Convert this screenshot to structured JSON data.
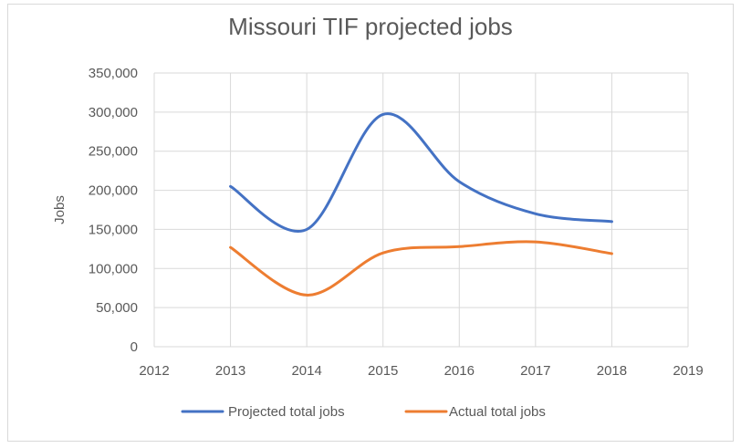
{
  "chart_data": {
    "type": "line",
    "title": "Missouri TIF projected jobs",
    "xlabel": "",
    "ylabel": "Jobs",
    "x": [
      2013,
      2014,
      2015,
      2016,
      2017,
      2018
    ],
    "x_ticks": [
      "2012",
      "2013",
      "2014",
      "2015",
      "2016",
      "2017",
      "2018",
      "2019"
    ],
    "xlim": [
      2012,
      2019
    ],
    "y_ticks": [
      "0",
      "50,000",
      "100,000",
      "150,000",
      "200,000",
      "250,000",
      "300,000",
      "350,000"
    ],
    "ylim": [
      0,
      350000
    ],
    "grid": "vertical and horizontal",
    "smooth": true,
    "legend_position": "bottom",
    "series": [
      {
        "name": "Projected total jobs",
        "color": "#4472c4",
        "values": [
          205000,
          150000,
          297000,
          211000,
          170000,
          160000
        ]
      },
      {
        "name": "Actual total jobs",
        "color": "#ed7d31",
        "values": [
          127000,
          66000,
          120000,
          128000,
          134000,
          119000
        ]
      }
    ]
  }
}
